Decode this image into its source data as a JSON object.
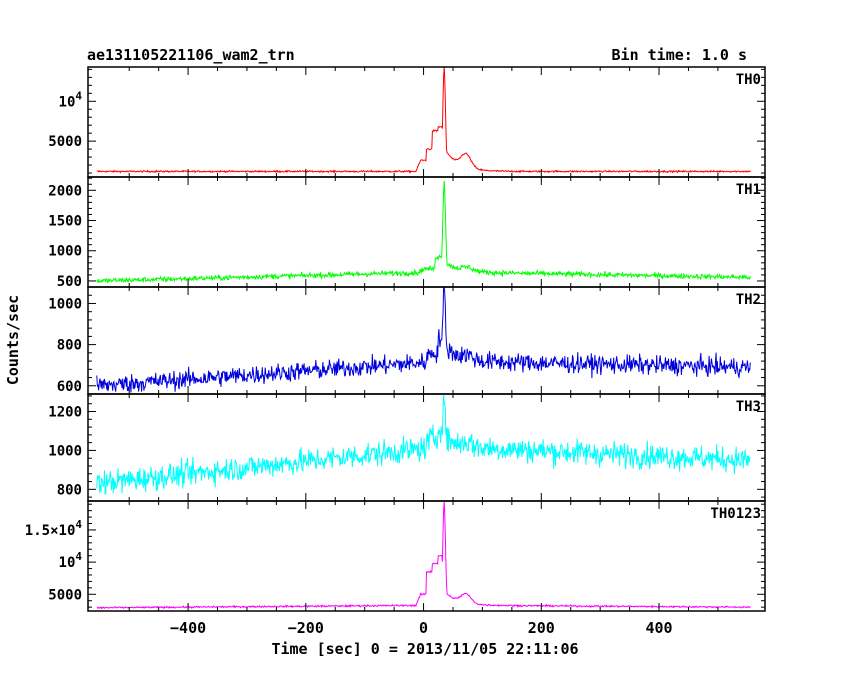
{
  "header": {
    "source_name": "ae131105221106_wam2_trn",
    "bin_time": "Bin time: 1.0 s"
  },
  "chart_data": {
    "type": "line",
    "title": "ae131105221106_wam2_trn",
    "bin_time_s": 1.0,
    "xlabel": "Time [sec] 0 = 2013/11/05 22:11:06",
    "ylabel": "Counts/sec",
    "xlim": [
      -570,
      580
    ],
    "x_ticks": [
      -400,
      -200,
      0,
      200,
      400
    ],
    "x_tick_labels": [
      "−400",
      "−200",
      "0",
      "200",
      "400"
    ],
    "x_data_range": [
      -555,
      555
    ],
    "peak_time": 35,
    "panels": [
      {
        "name": "TH0",
        "color": "#ff0000",
        "ylim": [
          500,
          14300
        ],
        "yticks": [
          5000,
          10000
        ],
        "yticklabels": [
          {
            "mant": "5000",
            "exp": ""
          },
          {
            "mant": "10",
            "exp": "4"
          }
        ],
        "baseline_start": 1200,
        "baseline_end": 1200,
        "noise": 70,
        "burst": {
          "pre_level": [
            [
              -5,
              2600
            ],
            [
              5,
              4000
            ],
            [
              15,
              6300
            ],
            [
              25,
              6800
            ]
          ],
          "peak": 14300,
          "tail_level": 3800,
          "bump_time": 72,
          "bump_height": 1700
        }
      },
      {
        "name": "TH1",
        "color": "#00ff00",
        "ylim": [
          400,
          2220
        ],
        "yticks": [
          500,
          1000,
          1500,
          2000
        ],
        "yticklabels": [
          {
            "mant": "500",
            "exp": ""
          },
          {
            "mant": "1000",
            "exp": ""
          },
          {
            "mant": "1500",
            "exp": ""
          },
          {
            "mant": "2000",
            "exp": ""
          }
        ],
        "baseline_start": 500,
        "baseline_mid": 650,
        "baseline_end": 560,
        "noise": 30,
        "burst": {
          "pre_level": [
            [
              0,
              700
            ],
            [
              20,
              900
            ]
          ],
          "peak": 2150,
          "tail_level": 800,
          "bump_time": 75,
          "bump_height": 60
        }
      },
      {
        "name": "TH2",
        "color": "#0000dd",
        "ylim": [
          560,
          1080
        ],
        "yticks": [
          600,
          800,
          1000
        ],
        "yticklabels": [
          {
            "mant": "600",
            "exp": ""
          },
          {
            "mant": "800",
            "exp": ""
          },
          {
            "mant": "1000",
            "exp": ""
          }
        ],
        "baseline_start": 600,
        "baseline_mid": 720,
        "baseline_end": 690,
        "noise": 32,
        "burst": {
          "pre_level": [
            [
              10,
              760
            ],
            [
              25,
              830
            ]
          ],
          "peak": 1080,
          "tail_level": 790,
          "bump_time": 75,
          "bump_height": 20
        }
      },
      {
        "name": "TH3",
        "color": "#00ffff",
        "ylim": [
          740,
          1290
        ],
        "yticks": [
          800,
          1000,
          1200
        ],
        "yticklabels": [
          {
            "mant": "800",
            "exp": ""
          },
          {
            "mant": "1000",
            "exp": ""
          },
          {
            "mant": "1200",
            "exp": ""
          }
        ],
        "baseline_start": 830,
        "baseline_mid": 1020,
        "baseline_end": 950,
        "noise": 45,
        "burst": {
          "pre_level": [
            [
              10,
              1060
            ],
            [
              25,
              1120
            ]
          ],
          "peak": 1280,
          "tail_level": 1060,
          "bump_time": 75,
          "bump_height": 20
        }
      },
      {
        "name": "TH0123",
        "color": "#ff00ff",
        "ylim": [
          2400,
          19500
        ],
        "yticks": [
          5000,
          10000,
          15000
        ],
        "yticklabels": [
          {
            "mant": "5000",
            "exp": ""
          },
          {
            "mant": "10",
            "exp": "4"
          },
          {
            "mant": "1.5×10",
            "exp": "4"
          }
        ],
        "baseline_start": 2900,
        "baseline_mid": 3300,
        "baseline_end": 3000,
        "noise": 90,
        "burst": {
          "pre_level": [
            [
              -5,
              5000
            ],
            [
              5,
              8500
            ],
            [
              15,
              9800
            ],
            [
              25,
              11000
            ]
          ],
          "peak": 19400,
          "tail_level": 5200,
          "bump_time": 72,
          "bump_height": 1400
        }
      }
    ]
  }
}
